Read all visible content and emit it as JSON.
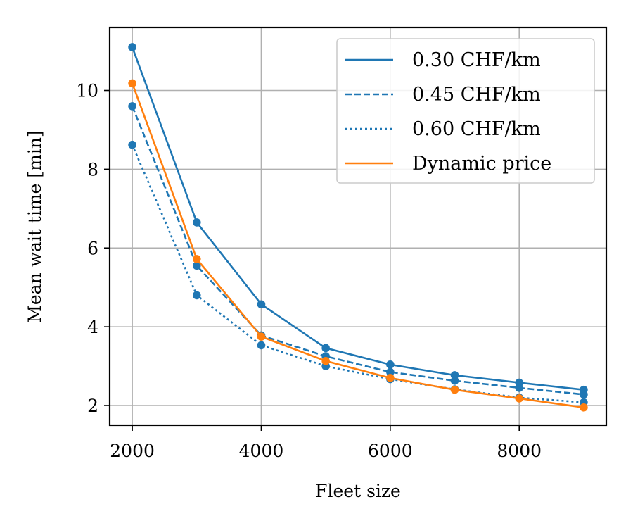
{
  "chart_data": {
    "type": "line",
    "title": "",
    "xlabel": "Fleet size",
    "ylabel": "Mean wait time [min]",
    "xlim": [
      1650,
      9350
    ],
    "ylim": [
      1.5,
      11.6
    ],
    "xticks": [
      2000,
      4000,
      6000,
      8000
    ],
    "yticks": [
      2,
      4,
      6,
      8,
      10
    ],
    "grid": true,
    "legend_position": "upper right",
    "x": [
      2000,
      3000,
      4000,
      5000,
      6000,
      7000,
      8000,
      9000
    ],
    "series": [
      {
        "name": "0.30 CHF/km",
        "style": "solid",
        "color": "#1f77b4",
        "values": [
          11.1,
          6.65,
          4.57,
          3.46,
          3.04,
          2.77,
          2.58,
          2.4
        ]
      },
      {
        "name": "0.45 CHF/km",
        "style": "dashed",
        "color": "#1f77b4",
        "values": [
          9.6,
          5.55,
          3.78,
          3.25,
          2.85,
          2.63,
          2.45,
          2.28
        ]
      },
      {
        "name": "0.60 CHF/km",
        "style": "dotted",
        "color": "#1f77b4",
        "values": [
          8.62,
          4.8,
          3.53,
          3.0,
          2.67,
          2.41,
          2.2,
          2.08
        ]
      },
      {
        "name": "Dynamic price",
        "style": "solid",
        "color": "#ff7f0e",
        "values": [
          10.18,
          5.72,
          3.75,
          3.13,
          2.7,
          2.4,
          2.18,
          1.95
        ]
      }
    ]
  }
}
